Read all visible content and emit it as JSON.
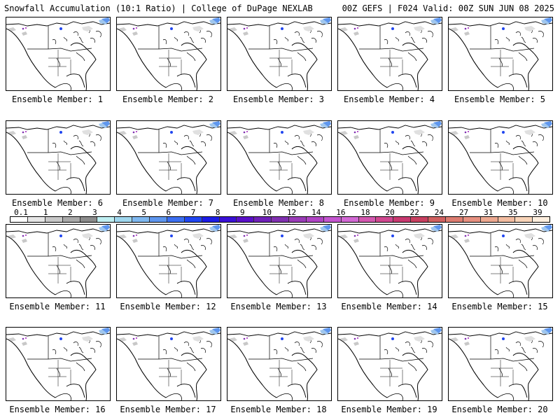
{
  "header": {
    "left": "Snowfall Accumulation (10:1 Ratio) | College of DuPage NEXLAB",
    "right": "00Z GEFS | F024 Valid: 00Z SUN JUN 08 2025"
  },
  "panels": [
    {
      "label": "Ensemble Member: 1"
    },
    {
      "label": "Ensemble Member: 2"
    },
    {
      "label": "Ensemble Member: 3"
    },
    {
      "label": "Ensemble Member: 4"
    },
    {
      "label": "Ensemble Member: 5"
    },
    {
      "label": "Ensemble Member: 6"
    },
    {
      "label": "Ensemble Member: 7"
    },
    {
      "label": "Ensemble Member: 8"
    },
    {
      "label": "Ensemble Member: 9"
    },
    {
      "label": "Ensemble Member: 10"
    },
    {
      "label": "Ensemble Member: 11"
    },
    {
      "label": "Ensemble Member: 12"
    },
    {
      "label": "Ensemble Member: 13"
    },
    {
      "label": "Ensemble Member: 14"
    },
    {
      "label": "Ensemble Member: 15"
    },
    {
      "label": "Ensemble Member: 16"
    },
    {
      "label": "Ensemble Member: 17"
    },
    {
      "label": "Ensemble Member: 18"
    },
    {
      "label": "Ensemble Member: 19"
    },
    {
      "label": "Ensemble Member: 20"
    }
  ],
  "colorbar": {
    "ticks": [
      "0.1",
      "1",
      "2",
      "3",
      "4",
      "5",
      "6",
      "7",
      "8",
      "9",
      "10",
      "12",
      "14",
      "16",
      "18",
      "20",
      "22",
      "24",
      "27",
      "31",
      "35",
      "39"
    ],
    "colors": [
      "#ffffff",
      "#e6e6e6",
      "#c8c8c8",
      "#a9a9a9",
      "#8c8c8c",
      "#bfeff2",
      "#9fd7ee",
      "#7fb8f0",
      "#5e96ee",
      "#3c6ff0",
      "#2046f0",
      "#1c1ce6",
      "#3a10d6",
      "#5a10c8",
      "#6f20b8",
      "#8030b0",
      "#9a3cb8",
      "#b044c4",
      "#c456d0",
      "#d268d4",
      "#d458b0",
      "#d04890",
      "#c83a70",
      "#c84060",
      "#d06060",
      "#dc7c70",
      "#e69080",
      "#eca890",
      "#f2bca0",
      "#f8d4b8",
      "#fdeede"
    ]
  }
}
